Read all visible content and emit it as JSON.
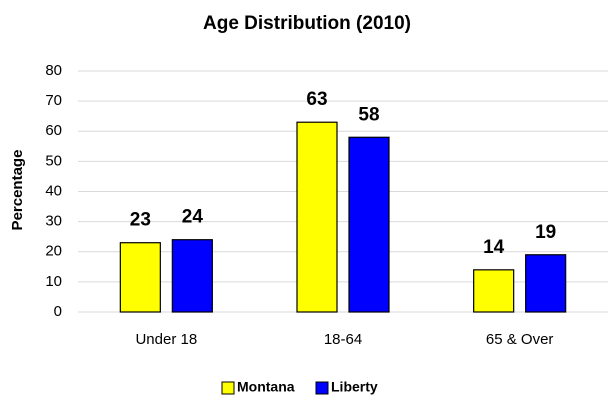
{
  "chart_data": {
    "type": "bar",
    "title": "Age Distribution (2010)",
    "ylabel": "Percentage",
    "categories": [
      "Under 18",
      "18-64",
      "65 & Over"
    ],
    "series": [
      {
        "name": "Montana",
        "color": "#ffff00",
        "values": [
          23,
          63,
          14
        ]
      },
      {
        "name": "Liberty",
        "color": "#0000ff",
        "values": [
          24,
          58,
          19
        ]
      }
    ],
    "ylim": [
      0,
      80
    ],
    "yticks": [
      0,
      10,
      20,
      30,
      40,
      50,
      60,
      70,
      80
    ],
    "grid": true,
    "legend": "bottom"
  }
}
